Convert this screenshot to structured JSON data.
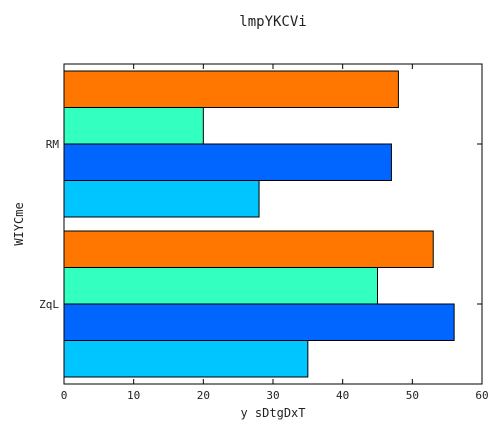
{
  "chart_data": {
    "type": "bar",
    "orientation": "horizontal",
    "title": "lmpYKCVi",
    "xlabel": "y sDtgDxT",
    "ylabel": "WIYCme",
    "categories": [
      "ZqL",
      "RM"
    ],
    "series": [
      {
        "color": "#00c5ff",
        "values": [
          35,
          28
        ]
      },
      {
        "color": "#0066ff",
        "values": [
          56,
          47
        ]
      },
      {
        "color": "#33ffc0",
        "values": [
          45,
          20
        ]
      },
      {
        "color": "#ff7700",
        "values": [
          53,
          48
        ]
      }
    ],
    "xlim": [
      0,
      60
    ],
    "xticks": [
      0,
      10,
      20,
      30,
      40,
      50,
      60
    ],
    "grid": false,
    "legend": "none"
  }
}
